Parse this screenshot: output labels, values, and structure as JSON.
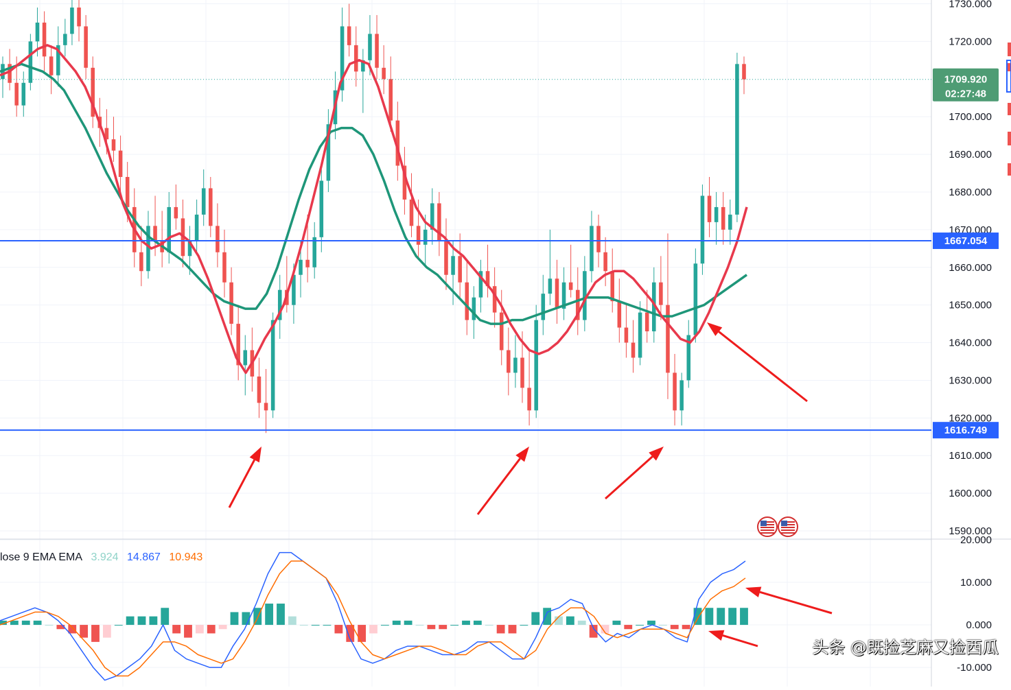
{
  "colors": {
    "up": "#26a69a",
    "down": "#ef5350",
    "ma_fast": "#e8394c",
    "ma_slow": "#1e9679",
    "hline": "#2962ff",
    "arrow": "#ee1c1c",
    "macd_line": "#2962ff",
    "signal_line": "#ff6d00",
    "hist_up_strong": "#26a69a",
    "hist_up_weak": "#b2dfdb",
    "hist_down_strong": "#ef5350",
    "hist_down_weak": "#ffcdd2",
    "grid": "#f0f3fa"
  },
  "price_axis": {
    "ticks": [
      "1730.000",
      "1720.000",
      "1700.000",
      "1690.000",
      "1680.000",
      "1670.000",
      "1660.000",
      "1650.000",
      "1640.000",
      "1630.000",
      "1620.000",
      "1610.000",
      "1600.000",
      "1590.000"
    ],
    "range": [
      1588,
      1731
    ]
  },
  "macd_axis": {
    "ticks": [
      "20.000",
      "10.000",
      "0.000",
      "-10.000"
    ],
    "range": [
      -14.5,
      20
    ]
  },
  "price_tags": {
    "current_price": "1709.920",
    "countdown": "02:27:48",
    "resistance": "1667.054",
    "support": "1616.749"
  },
  "indicator_legend": {
    "name": "lose 9 EMA EMA",
    "hist": "3.924",
    "macd": "14.867",
    "signal": "10.943"
  },
  "watermark": "头条 @既捡芝麻又捡西瓜",
  "flag_icons": [
    "us-flag-icon",
    "us-flag-icon"
  ],
  "chart_data": {
    "type": "candlestick",
    "title": "",
    "horizontal_levels": [
      1667.054,
      1616.749
    ],
    "last_price": 1709.92,
    "candles": [
      [
        1710,
        1716,
        1705,
        1714
      ],
      [
        1714,
        1718,
        1707,
        1709
      ],
      [
        1709,
        1716,
        1700,
        1703
      ],
      [
        1703,
        1712,
        1700,
        1709
      ],
      [
        1709,
        1722,
        1707,
        1720
      ],
      [
        1720,
        1729,
        1716,
        1725
      ],
      [
        1725,
        1728,
        1712,
        1716
      ],
      [
        1716,
        1719,
        1706,
        1711
      ],
      [
        1711,
        1724,
        1708,
        1719
      ],
      [
        1719,
        1726,
        1716,
        1722
      ],
      [
        1722,
        1733,
        1719,
        1729
      ],
      [
        1729,
        1731,
        1720,
        1724
      ],
      [
        1724,
        1727,
        1710,
        1713
      ],
      [
        1713,
        1716,
        1697,
        1700
      ],
      [
        1700,
        1705,
        1692,
        1697
      ],
      [
        1697,
        1702,
        1690,
        1694
      ],
      [
        1694,
        1700,
        1688,
        1691
      ],
      [
        1691,
        1695,
        1680,
        1684
      ],
      [
        1684,
        1688,
        1672,
        1676
      ],
      [
        1676,
        1681,
        1660,
        1664
      ],
      [
        1664,
        1671,
        1655,
        1659
      ],
      [
        1659,
        1675,
        1657,
        1671
      ],
      [
        1671,
        1679,
        1663,
        1667
      ],
      [
        1667,
        1675,
        1660,
        1664
      ],
      [
        1664,
        1680,
        1661,
        1676
      ],
      [
        1676,
        1682,
        1670,
        1673
      ],
      [
        1673,
        1678,
        1660,
        1663
      ],
      [
        1663,
        1671,
        1658,
        1667
      ],
      [
        1667,
        1678,
        1664,
        1674
      ],
      [
        1674,
        1686,
        1671,
        1681
      ],
      [
        1681,
        1684,
        1668,
        1671
      ],
      [
        1671,
        1677,
        1660,
        1664
      ],
      [
        1664,
        1670,
        1652,
        1656
      ],
      [
        1656,
        1660,
        1642,
        1645
      ],
      [
        1645,
        1650,
        1630,
        1634
      ],
      [
        1634,
        1642,
        1626,
        1638
      ],
      [
        1638,
        1644,
        1627,
        1631
      ],
      [
        1631,
        1636,
        1620,
        1624
      ],
      [
        1624,
        1633,
        1616,
        1622
      ],
      [
        1622,
        1648,
        1620,
        1646
      ],
      [
        1646,
        1658,
        1641,
        1654
      ],
      [
        1654,
        1663,
        1648,
        1650
      ],
      [
        1650,
        1661,
        1645,
        1658
      ],
      [
        1658,
        1667,
        1652,
        1662
      ],
      [
        1662,
        1674,
        1656,
        1660
      ],
      [
        1660,
        1672,
        1657,
        1668
      ],
      [
        1668,
        1686,
        1664,
        1683
      ],
      [
        1683,
        1702,
        1680,
        1698
      ],
      [
        1698,
        1712,
        1694,
        1707
      ],
      [
        1707,
        1729,
        1704,
        1724
      ],
      [
        1724,
        1730,
        1716,
        1719
      ],
      [
        1719,
        1724,
        1708,
        1712
      ],
      [
        1712,
        1718,
        1701,
        1715
      ],
      [
        1715,
        1727,
        1711,
        1722
      ],
      [
        1722,
        1727,
        1710,
        1713
      ],
      [
        1713,
        1719,
        1706,
        1710
      ],
      [
        1710,
        1716,
        1696,
        1699
      ],
      [
        1699,
        1704,
        1683,
        1687
      ],
      [
        1687,
        1692,
        1674,
        1678
      ],
      [
        1678,
        1685,
        1668,
        1671
      ],
      [
        1671,
        1678,
        1662,
        1666
      ],
      [
        1666,
        1674,
        1660,
        1670
      ],
      [
        1670,
        1681,
        1666,
        1677
      ],
      [
        1677,
        1680,
        1663,
        1667
      ],
      [
        1667,
        1673,
        1654,
        1658
      ],
      [
        1658,
        1667,
        1650,
        1663
      ],
      [
        1663,
        1669,
        1652,
        1656
      ],
      [
        1656,
        1662,
        1642,
        1646
      ],
      [
        1646,
        1655,
        1641,
        1652
      ],
      [
        1652,
        1662,
        1648,
        1659
      ],
      [
        1659,
        1666,
        1652,
        1655
      ],
      [
        1655,
        1660,
        1644,
        1648
      ],
      [
        1648,
        1654,
        1634,
        1638
      ],
      [
        1638,
        1644,
        1626,
        1632
      ],
      [
        1632,
        1642,
        1628,
        1636
      ],
      [
        1636,
        1643,
        1624,
        1628
      ],
      [
        1628,
        1638,
        1618,
        1622
      ],
      [
        1622,
        1650,
        1620,
        1646
      ],
      [
        1646,
        1658,
        1642,
        1653
      ],
      [
        1653,
        1670,
        1650,
        1657
      ],
      [
        1657,
        1662,
        1645,
        1649
      ],
      [
        1649,
        1660,
        1646,
        1656
      ],
      [
        1656,
        1666,
        1652,
        1654
      ],
      [
        1654,
        1660,
        1642,
        1646
      ],
      [
        1646,
        1663,
        1643,
        1659
      ],
      [
        1659,
        1675,
        1656,
        1671
      ],
      [
        1671,
        1674,
        1660,
        1664
      ],
      [
        1664,
        1668,
        1655,
        1659
      ],
      [
        1659,
        1665,
        1648,
        1651
      ],
      [
        1651,
        1657,
        1640,
        1644
      ],
      [
        1644,
        1650,
        1636,
        1640
      ],
      [
        1640,
        1646,
        1632,
        1636
      ],
      [
        1636,
        1651,
        1634,
        1648
      ],
      [
        1648,
        1654,
        1640,
        1643
      ],
      [
        1643,
        1660,
        1640,
        1656
      ],
      [
        1656,
        1663,
        1646,
        1650
      ],
      [
        1650,
        1669,
        1625,
        1632
      ],
      [
        1632,
        1637,
        1618,
        1622
      ],
      [
        1622,
        1632,
        1618,
        1630
      ],
      [
        1630,
        1646,
        1628,
        1642
      ],
      [
        1642,
        1665,
        1640,
        1661
      ],
      [
        1661,
        1682,
        1658,
        1679
      ],
      [
        1679,
        1684,
        1668,
        1672
      ],
      [
        1672,
        1680,
        1666,
        1676
      ],
      [
        1676,
        1680,
        1666,
        1670
      ],
      [
        1670,
        1678,
        1666,
        1674
      ],
      [
        1674,
        1717,
        1672,
        1714
      ],
      [
        1714,
        1716,
        1706,
        1709.92
      ]
    ],
    "series": [
      {
        "values": [
          1711,
          1712,
          1714,
          1716,
          1718,
          1719,
          1718,
          1715,
          1712,
          1708,
          1702,
          1695,
          1686,
          1677,
          1671,
          1667,
          1665,
          1666,
          1668,
          1669,
          1667,
          1663,
          1657,
          1650,
          1643,
          1636,
          1632,
          1636,
          1641,
          1645,
          1650,
          1658,
          1667,
          1677,
          1687,
          1698,
          1709,
          1714,
          1715,
          1714,
          1708,
          1700,
          1692,
          1683,
          1676,
          1672,
          1670,
          1668,
          1665,
          1663,
          1660,
          1657,
          1654,
          1650,
          1645,
          1641,
          1638,
          1637,
          1638,
          1640,
          1643,
          1647,
          1652,
          1656,
          1658,
          1659,
          1659,
          1657,
          1654,
          1651,
          1647,
          1644,
          1641,
          1640,
          1643,
          1648,
          1654,
          1660,
          1667,
          1676
        ]
      },
      {
        "values": [
          1712,
          1713,
          1714,
          1713,
          1712,
          1710,
          1707,
          1702,
          1697,
          1691,
          1685,
          1680,
          1675,
          1671,
          1668,
          1666,
          1664,
          1662,
          1659,
          1656,
          1653,
          1651,
          1650,
          1649,
          1649,
          1653,
          1660,
          1669,
          1678,
          1686,
          1692,
          1696,
          1697,
          1697,
          1695,
          1690,
          1683,
          1675,
          1668,
          1663,
          1660,
          1658,
          1655,
          1652,
          1649,
          1646,
          1645,
          1645,
          1646,
          1646,
          1647,
          1648,
          1649,
          1650,
          1651,
          1652,
          1652,
          1652,
          1651,
          1650,
          1649,
          1648,
          1647,
          1647,
          1648,
          1649,
          1650,
          1652,
          1654,
          1656,
          1658
        ]
      }
    ],
    "macd": {
      "macd_line": [
        1,
        2,
        3,
        4,
        3,
        1,
        -2,
        -6,
        -10,
        -13,
        -12,
        -10,
        -8,
        -5,
        0,
        -6,
        -8,
        -9,
        -10,
        -10,
        -5,
        -1,
        5,
        12,
        17,
        17,
        15,
        13,
        11,
        5,
        -3,
        -8,
        -9,
        -8,
        -6,
        -5,
        -5,
        -6,
        -7,
        -7,
        -6,
        -4,
        -4,
        -6,
        -8,
        -8,
        -3,
        3,
        4,
        6,
        5,
        -1,
        -4,
        -2,
        -3,
        -1,
        0,
        -1,
        -3,
        -4,
        6,
        10,
        12,
        13,
        15
      ],
      "signal_line": [
        0,
        1,
        2,
        3,
        3,
        2,
        0,
        -3,
        -6,
        -10,
        -12,
        -12,
        -10,
        -7,
        -4,
        -4,
        -5,
        -7,
        -8,
        -9,
        -8,
        -4,
        1,
        7,
        12,
        15,
        15,
        13,
        11,
        7,
        1,
        -4,
        -7,
        -8,
        -7,
        -6,
        -5,
        -5,
        -6,
        -7,
        -7,
        -5,
        -4,
        -4,
        -6,
        -8,
        -6,
        -1,
        2,
        4,
        4,
        2,
        -2,
        -3,
        -2,
        -1,
        -1,
        -1,
        -2,
        -3,
        2,
        6,
        8,
        9,
        11
      ],
      "histogram": [
        1,
        1,
        1,
        1,
        0,
        -1,
        -2,
        -3,
        -4,
        -3,
        0,
        2,
        2,
        2,
        4,
        -2,
        -3,
        -2,
        -2,
        -1,
        3,
        3,
        4,
        5,
        5,
        2,
        0,
        0,
        0,
        -2,
        -4,
        -4,
        -2,
        0,
        1,
        1,
        0,
        -1,
        -1,
        0,
        1,
        1,
        0,
        -2,
        -2,
        0,
        3,
        4,
        2,
        2,
        1,
        -3,
        -2,
        1,
        -1,
        0,
        1,
        0,
        -1,
        -1,
        4,
        4,
        4,
        4,
        4
      ]
    }
  }
}
